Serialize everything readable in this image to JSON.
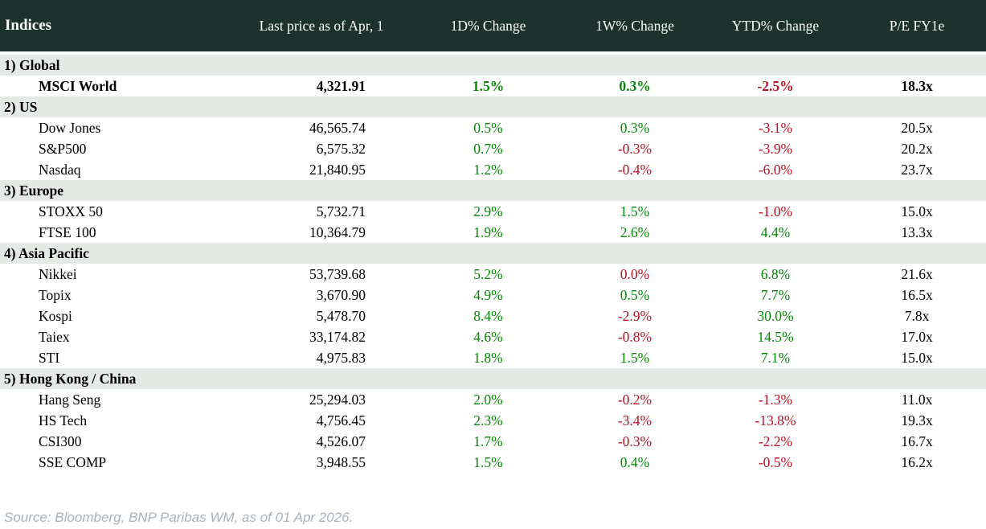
{
  "colors": {
    "header_bg": "#1b332c",
    "section_bg": "#e4e9e5",
    "positive": "#068806",
    "negative": "#bb1122",
    "source_text": "#a9b2bb"
  },
  "table": {
    "columns": [
      "Indices",
      "Last price as of Apr, 1",
      "1D% Change",
      "1W% Change",
      "YTD% Change",
      "P/E FY1e"
    ],
    "sections": [
      {
        "label": "1) Global",
        "rows": [
          {
            "name": "MSCI World",
            "price": "4,321.91",
            "d1": "1.5%",
            "w1": "0.3%",
            "ytd": "-2.5%",
            "pe": "18.3x",
            "bold": true
          }
        ]
      },
      {
        "label": "2) US",
        "rows": [
          {
            "name": "Dow Jones",
            "price": "46,565.74",
            "d1": "0.5%",
            "w1": "0.3%",
            "ytd": "-3.1%",
            "pe": "20.5x",
            "bold": false
          },
          {
            "name": "S&P500",
            "price": "6,575.32",
            "d1": "0.7%",
            "w1": "-0.3%",
            "ytd": "-3.9%",
            "pe": "20.2x",
            "bold": false
          },
          {
            "name": "Nasdaq",
            "price": "21,840.95",
            "d1": "1.2%",
            "w1": "-0.4%",
            "ytd": "-6.0%",
            "pe": "23.7x",
            "bold": false
          }
        ]
      },
      {
        "label": "3) Europe",
        "rows": [
          {
            "name": "STOXX 50",
            "price": "5,732.71",
            "d1": "2.9%",
            "w1": "1.5%",
            "ytd": "-1.0%",
            "pe": "15.0x",
            "bold": false
          },
          {
            "name": "FTSE 100",
            "price": "10,364.79",
            "d1": "1.9%",
            "w1": "2.6%",
            "ytd": "4.4%",
            "pe": "13.3x",
            "bold": false
          }
        ]
      },
      {
        "label": "4) Asia Pacific",
        "rows": [
          {
            "name": "Nikkei",
            "price": "53,739.68",
            "d1": "5.2%",
            "w1": "0.0%",
            "ytd": "6.8%",
            "pe": "21.6x",
            "bold": false
          },
          {
            "name": "Topix",
            "price": "3,670.90",
            "d1": "4.9%",
            "w1": "0.5%",
            "ytd": "7.7%",
            "pe": "16.5x",
            "bold": false
          },
          {
            "name": "Kospi",
            "price": "5,478.70",
            "d1": "8.4%",
            "w1": "-2.9%",
            "ytd": "30.0%",
            "pe": "7.8x",
            "bold": false
          },
          {
            "name": "Taiex",
            "price": "33,174.82",
            "d1": "4.6%",
            "w1": "-0.8%",
            "ytd": "14.5%",
            "pe": "17.0x",
            "bold": false
          },
          {
            "name": "STI",
            "price": "4,975.83",
            "d1": "1.8%",
            "w1": "1.5%",
            "ytd": "7.1%",
            "pe": "15.0x",
            "bold": false
          }
        ]
      },
      {
        "label": "5) Hong Kong / China",
        "rows": [
          {
            "name": "Hang Seng",
            "price": "25,294.03",
            "d1": "2.0%",
            "w1": "-0.2%",
            "ytd": "-1.3%",
            "pe": "11.0x",
            "bold": false
          },
          {
            "name": "HS Tech",
            "price": "4,756.45",
            "d1": "2.3%",
            "w1": "-3.4%",
            "ytd": "-13.8%",
            "pe": "19.3x",
            "bold": false
          },
          {
            "name": "CSI300",
            "price": "4,526.07",
            "d1": "1.7%",
            "w1": "-0.3%",
            "ytd": "-2.2%",
            "pe": "16.7x",
            "bold": false
          },
          {
            "name": "SSE COMP",
            "price": "3,948.55",
            "d1": "1.5%",
            "w1": "0.4%",
            "ytd": "-0.5%",
            "pe": "16.2x",
            "bold": false
          }
        ]
      }
    ]
  },
  "footer": {
    "source": "Source: Bloomberg, BNP Paribas WM, as of 01 Apr 2026."
  },
  "chart_data": {
    "type": "table",
    "title": "Indices",
    "columns": [
      "Indices",
      "Last price as of Apr, 1",
      "1D% Change",
      "1W% Change",
      "YTD% Change",
      "P/E FY1e"
    ],
    "groups": [
      "1) Global",
      "2) US",
      "3) Europe",
      "4) Asia Pacific",
      "5) Hong Kong / China"
    ],
    "rows": [
      {
        "group": "1) Global",
        "index": "MSCI World",
        "last_price": 4321.91,
        "d1_pct": 1.5,
        "w1_pct": 0.3,
        "ytd_pct": -2.5,
        "pe_fy1e": 18.3
      },
      {
        "group": "2) US",
        "index": "Dow Jones",
        "last_price": 46565.74,
        "d1_pct": 0.5,
        "w1_pct": 0.3,
        "ytd_pct": -3.1,
        "pe_fy1e": 20.5
      },
      {
        "group": "2) US",
        "index": "S&P500",
        "last_price": 6575.32,
        "d1_pct": 0.7,
        "w1_pct": -0.3,
        "ytd_pct": -3.9,
        "pe_fy1e": 20.2
      },
      {
        "group": "2) US",
        "index": "Nasdaq",
        "last_price": 21840.95,
        "d1_pct": 1.2,
        "w1_pct": -0.4,
        "ytd_pct": -6.0,
        "pe_fy1e": 23.7
      },
      {
        "group": "3) Europe",
        "index": "STOXX 50",
        "last_price": 5732.71,
        "d1_pct": 2.9,
        "w1_pct": 1.5,
        "ytd_pct": -1.0,
        "pe_fy1e": 15.0
      },
      {
        "group": "3) Europe",
        "index": "FTSE 100",
        "last_price": 10364.79,
        "d1_pct": 1.9,
        "w1_pct": 2.6,
        "ytd_pct": 4.4,
        "pe_fy1e": 13.3
      },
      {
        "group": "4) Asia Pacific",
        "index": "Nikkei",
        "last_price": 53739.68,
        "d1_pct": 5.2,
        "w1_pct": 0.0,
        "ytd_pct": 6.8,
        "pe_fy1e": 21.6
      },
      {
        "group": "4) Asia Pacific",
        "index": "Topix",
        "last_price": 3670.9,
        "d1_pct": 4.9,
        "w1_pct": 0.5,
        "ytd_pct": 7.7,
        "pe_fy1e": 16.5
      },
      {
        "group": "4) Asia Pacific",
        "index": "Kospi",
        "last_price": 5478.7,
        "d1_pct": 8.4,
        "w1_pct": -2.9,
        "ytd_pct": 30.0,
        "pe_fy1e": 7.8
      },
      {
        "group": "4) Asia Pacific",
        "index": "Taiex",
        "last_price": 33174.82,
        "d1_pct": 4.6,
        "w1_pct": -0.8,
        "ytd_pct": 14.5,
        "pe_fy1e": 17.0
      },
      {
        "group": "4) Asia Pacific",
        "index": "STI",
        "last_price": 4975.83,
        "d1_pct": 1.8,
        "w1_pct": 1.5,
        "ytd_pct": 7.1,
        "pe_fy1e": 15.0
      },
      {
        "group": "5) Hong Kong / China",
        "index": "Hang Seng",
        "last_price": 25294.03,
        "d1_pct": 2.0,
        "w1_pct": -0.2,
        "ytd_pct": -1.3,
        "pe_fy1e": 11.0
      },
      {
        "group": "5) Hong Kong / China",
        "index": "HS Tech",
        "last_price": 4756.45,
        "d1_pct": 2.3,
        "w1_pct": -3.4,
        "ytd_pct": -13.8,
        "pe_fy1e": 19.3
      },
      {
        "group": "5) Hong Kong / China",
        "index": "CSI300",
        "last_price": 4526.07,
        "d1_pct": 1.7,
        "w1_pct": -0.3,
        "ytd_pct": -2.2,
        "pe_fy1e": 16.7
      },
      {
        "group": "5) Hong Kong / China",
        "index": "SSE COMP",
        "last_price": 3948.55,
        "d1_pct": 1.5,
        "w1_pct": 0.4,
        "ytd_pct": -0.5,
        "pe_fy1e": 16.2
      }
    ],
    "notes": "Positive percentage changes shown in green, zero or negative in red.",
    "source": "Source: Bloomberg, BNP Paribas WM, as of 01 Apr 2026."
  }
}
